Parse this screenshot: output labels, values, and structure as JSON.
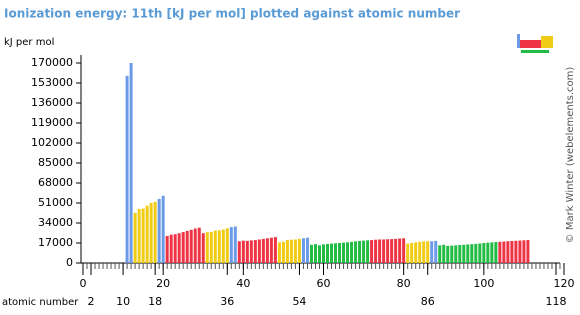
{
  "chart_data": {
    "type": "bar",
    "title": "Ionization energy: 11th [kJ per mol] plotted against atomic number",
    "y_label": "kJ per mol",
    "x_label": "atomic number",
    "credit": "© Mark Winter (webelements.com)",
    "xlim": [
      0,
      120
    ],
    "xticks": [
      0,
      20,
      40,
      60,
      80,
      100,
      120
    ],
    "xticks_secondary": [
      2,
      10,
      18,
      36,
      54,
      86,
      118
    ],
    "ylim": [
      0,
      170000
    ],
    "yticks": [
      0,
      17000,
      34000,
      51000,
      68000,
      85000,
      102000,
      119000,
      136000,
      153000,
      170000
    ],
    "series": [
      {
        "color": "#6b9be8",
        "x": [
          11,
          12,
          19,
          20,
          37,
          38,
          55,
          56,
          87,
          88
        ],
        "values": [
          159076,
          169988,
          54490,
          57110,
          30500,
          31000,
          21000,
          21500,
          18500,
          18800
        ]
      },
      {
        "color": "#f0cc14",
        "x": [
          13,
          14,
          15,
          16,
          17,
          18,
          31,
          32,
          33,
          34,
          35,
          36,
          49,
          50,
          51,
          52,
          53,
          54,
          81,
          82,
          83,
          84,
          85,
          86
        ],
        "values": [
          42647,
          45962,
          46261,
          48710,
          51068,
          52002,
          26200,
          26500,
          27500,
          27800,
          28500,
          29500,
          17500,
          18000,
          19500,
          19800,
          20000,
          20500,
          16500,
          17000,
          17500,
          18000,
          18300,
          18500
        ]
      },
      {
        "color": "#ee3344",
        "x": [
          21,
          22,
          23,
          24,
          25,
          26,
          27,
          28,
          29,
          30,
          39,
          40,
          41,
          42,
          43,
          44,
          45,
          46,
          47,
          48,
          72,
          73,
          74,
          75,
          76,
          77,
          78,
          79,
          80,
          104,
          105,
          106,
          107,
          108,
          109,
          110,
          111
        ],
        "values": [
          23000,
          24100,
          24500,
          25300,
          26300,
          27300,
          28200,
          29300,
          30000,
          25300,
          18500,
          19000,
          18800,
          19200,
          19500,
          20000,
          20500,
          21000,
          21500,
          22000,
          19500,
          19800,
          20000,
          20000,
          20200,
          20300,
          20500,
          20800,
          21000,
          18000,
          18200,
          18500,
          18700,
          18900,
          19100,
          19300,
          19500
        ]
      },
      {
        "color": "#22bb44",
        "x": [
          57,
          58,
          59,
          60,
          61,
          62,
          63,
          64,
          65,
          66,
          67,
          68,
          69,
          70,
          71,
          89,
          90,
          91,
          92,
          93,
          94,
          95,
          96,
          97,
          98,
          99,
          100,
          101,
          102,
          103
        ],
        "values": [
          15500,
          16000,
          15000,
          15800,
          16200,
          16500,
          16800,
          17000,
          17300,
          17600,
          18000,
          18400,
          18700,
          19000,
          19300,
          15000,
          15500,
          14500,
          14800,
          15000,
          15300,
          15500,
          15800,
          16000,
          16300,
          16600,
          17000,
          17300,
          17500,
          17800
        ]
      }
    ]
  }
}
